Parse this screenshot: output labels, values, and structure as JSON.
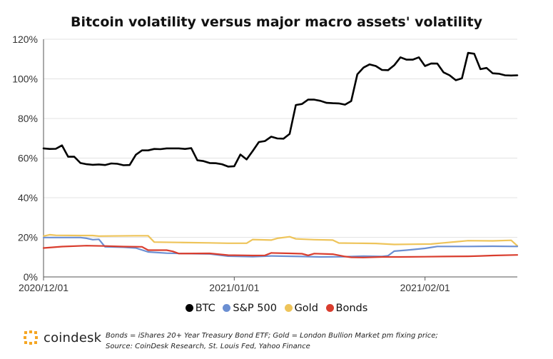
{
  "chart_data": {
    "type": "line",
    "title": "Bitcoin volatility versus major macro assets' volatility",
    "x_ticks": [
      "2020/12/01",
      "2021/01/01",
      "2021/02/01"
    ],
    "x_range": [
      "2020/12/01",
      "2021/02/15"
    ],
    "y_ticks": [
      "0%",
      "20%",
      "40%",
      "60%",
      "80%",
      "100%",
      "120%"
    ],
    "ylim": [
      0,
      120
    ],
    "grid": "horizontal",
    "legend_position": "bottom",
    "series": [
      {
        "name": "BTC",
        "color": "#000000",
        "points": [
          [
            "2020/12/01",
            64.9
          ],
          [
            "2020/12/02",
            64.6
          ],
          [
            "2020/12/03",
            64.7
          ],
          [
            "2020/12/04",
            66.4
          ],
          [
            "2020/12/05",
            60.7
          ],
          [
            "2020/12/06",
            60.7
          ],
          [
            "2020/12/07",
            57.5
          ],
          [
            "2020/12/08",
            56.9
          ],
          [
            "2020/12/09",
            56.6
          ],
          [
            "2020/12/10",
            56.8
          ],
          [
            "2020/12/11",
            56.5
          ],
          [
            "2020/12/12",
            57.3
          ],
          [
            "2020/12/13",
            57.1
          ],
          [
            "2020/12/14",
            56.4
          ],
          [
            "2020/12/15",
            56.5
          ],
          [
            "2020/12/16",
            61.7
          ],
          [
            "2020/12/17",
            63.9
          ],
          [
            "2020/12/18",
            63.9
          ],
          [
            "2020/12/19",
            64.6
          ],
          [
            "2020/12/20",
            64.5
          ],
          [
            "2020/12/21",
            64.9
          ],
          [
            "2020/12/22",
            64.9
          ],
          [
            "2020/12/23",
            64.9
          ],
          [
            "2020/12/24",
            64.6
          ],
          [
            "2020/12/25",
            65.0
          ],
          [
            "2020/12/26",
            58.9
          ],
          [
            "2020/12/27",
            58.5
          ],
          [
            "2020/12/28",
            57.5
          ],
          [
            "2020/12/29",
            57.4
          ],
          [
            "2020/12/30",
            56.9
          ],
          [
            "2020/12/31",
            55.7
          ],
          [
            "2021/01/01",
            55.9
          ],
          [
            "2021/01/02",
            61.8
          ],
          [
            "2021/01/03",
            59.3
          ],
          [
            "2021/01/04",
            63.6
          ],
          [
            "2021/01/05",
            68.1
          ],
          [
            "2021/01/06",
            68.6
          ],
          [
            "2021/01/07",
            70.8
          ],
          [
            "2021/01/08",
            69.9
          ],
          [
            "2021/01/09",
            69.8
          ],
          [
            "2021/01/10",
            72.2
          ],
          [
            "2021/01/11",
            86.8
          ],
          [
            "2021/01/12",
            87.3
          ],
          [
            "2021/01/13",
            89.5
          ],
          [
            "2021/01/14",
            89.5
          ],
          [
            "2021/01/15",
            88.9
          ],
          [
            "2021/01/16",
            87.9
          ],
          [
            "2021/01/17",
            87.7
          ],
          [
            "2021/01/18",
            87.6
          ],
          [
            "2021/01/19",
            87.0
          ],
          [
            "2021/01/20",
            88.8
          ],
          [
            "2021/01/21",
            102.3
          ],
          [
            "2021/01/22",
            105.7
          ],
          [
            "2021/01/23",
            107.3
          ],
          [
            "2021/01/24",
            106.5
          ],
          [
            "2021/01/25",
            104.5
          ],
          [
            "2021/01/26",
            104.4
          ],
          [
            "2021/01/27",
            106.9
          ],
          [
            "2021/01/28",
            110.9
          ],
          [
            "2021/01/29",
            109.7
          ],
          [
            "2021/01/30",
            109.7
          ],
          [
            "2021/01/31",
            110.9
          ],
          [
            "2021/02/01",
            106.5
          ],
          [
            "2021/02/02",
            107.8
          ],
          [
            "2021/02/03",
            107.7
          ],
          [
            "2021/02/04",
            103.3
          ],
          [
            "2021/02/05",
            101.8
          ],
          [
            "2021/02/06",
            99.3
          ],
          [
            "2021/02/07",
            100.3
          ],
          [
            "2021/02/08",
            113.1
          ],
          [
            "2021/02/09",
            112.7
          ],
          [
            "2021/02/10",
            104.9
          ],
          [
            "2021/02/11",
            105.5
          ],
          [
            "2021/02/12",
            102.8
          ],
          [
            "2021/02/13",
            102.6
          ],
          [
            "2021/02/14",
            101.8
          ],
          [
            "2021/02/15",
            101.7
          ],
          [
            "2021/02/16",
            101.8
          ]
        ]
      },
      {
        "name": "S&P 500",
        "color": "#6B8FD2",
        "points": [
          [
            "2020/12/01",
            19.9
          ],
          [
            "2020/12/07",
            19.9
          ],
          [
            "2020/12/08",
            19.5
          ],
          [
            "2020/12/09",
            18.8
          ],
          [
            "2020/12/10",
            19.0
          ],
          [
            "2020/12/11",
            15.2
          ],
          [
            "2020/12/14",
            15.0
          ],
          [
            "2020/12/16",
            14.6
          ],
          [
            "2020/12/18",
            12.6
          ],
          [
            "2020/12/21",
            12.0
          ],
          [
            "2020/12/24",
            11.8
          ],
          [
            "2020/12/28",
            11.6
          ],
          [
            "2020/12/31",
            10.5
          ],
          [
            "2021/01/04",
            10.2
          ],
          [
            "2021/01/07",
            10.6
          ],
          [
            "2021/01/12",
            10.3
          ],
          [
            "2021/01/15",
            10.1
          ],
          [
            "2021/01/19",
            10.2
          ],
          [
            "2021/01/22",
            10.5
          ],
          [
            "2021/01/25",
            10.3
          ],
          [
            "2021/01/26",
            10.7
          ],
          [
            "2021/01/27",
            13.0
          ],
          [
            "2021/01/29",
            13.5
          ],
          [
            "2021/02/01",
            14.4
          ],
          [
            "2021/02/03",
            15.4
          ],
          [
            "2021/02/08",
            15.4
          ],
          [
            "2021/02/12",
            15.5
          ],
          [
            "2021/02/16",
            15.4
          ]
        ]
      },
      {
        "name": "Gold",
        "color": "#EEC45A",
        "points": [
          [
            "2020/12/01",
            20.6
          ],
          [
            "2020/12/02",
            21.3
          ],
          [
            "2020/12/03",
            21.0
          ],
          [
            "2020/12/07",
            20.9
          ],
          [
            "2020/12/09",
            20.9
          ],
          [
            "2020/12/10",
            20.6
          ],
          [
            "2020/12/16",
            20.8
          ],
          [
            "2020/12/18",
            20.8
          ],
          [
            "2020/12/19",
            17.6
          ],
          [
            "2020/12/23",
            17.4
          ],
          [
            "2020/12/28",
            17.2
          ],
          [
            "2020/12/31",
            17.0
          ],
          [
            "2021/01/03",
            17.0
          ],
          [
            "2021/01/04",
            18.9
          ],
          [
            "2021/01/07",
            18.6
          ],
          [
            "2021/01/08",
            19.5
          ],
          [
            "2021/01/10",
            20.3
          ],
          [
            "2021/01/11",
            19.2
          ],
          [
            "2021/01/14",
            18.8
          ],
          [
            "2021/01/17",
            18.6
          ],
          [
            "2021/01/18",
            17.1
          ],
          [
            "2021/01/21",
            17.0
          ],
          [
            "2021/01/24",
            16.9
          ],
          [
            "2021/01/27",
            16.4
          ],
          [
            "2021/01/30",
            16.5
          ],
          [
            "2021/02/02",
            16.6
          ],
          [
            "2021/02/04",
            17.2
          ],
          [
            "2021/02/08",
            18.3
          ],
          [
            "2021/02/12",
            18.2
          ],
          [
            "2021/02/15",
            18.5
          ],
          [
            "2021/02/16",
            15.7
          ]
        ]
      },
      {
        "name": "Bonds",
        "color": "#D93D2E",
        "points": [
          [
            "2020/12/01",
            14.6
          ],
          [
            "2020/12/04",
            15.3
          ],
          [
            "2020/12/08",
            15.8
          ],
          [
            "2020/12/11",
            15.6
          ],
          [
            "2020/12/14",
            15.3
          ],
          [
            "2020/12/17",
            15.2
          ],
          [
            "2020/12/18",
            13.5
          ],
          [
            "2020/12/21",
            13.5
          ],
          [
            "2020/12/22",
            12.9
          ],
          [
            "2020/12/23",
            11.8
          ],
          [
            "2020/12/28",
            11.9
          ],
          [
            "2020/12/31",
            11.0
          ],
          [
            "2021/01/03",
            10.9
          ],
          [
            "2021/01/04",
            10.8
          ],
          [
            "2021/01/06",
            10.9
          ],
          [
            "2021/01/07",
            12.1
          ],
          [
            "2021/01/10",
            11.9
          ],
          [
            "2021/01/12",
            11.7
          ],
          [
            "2021/01/13",
            10.9
          ],
          [
            "2021/01/14",
            11.8
          ],
          [
            "2021/01/17",
            11.5
          ],
          [
            "2021/01/19",
            10.3
          ],
          [
            "2021/01/20",
            9.9
          ],
          [
            "2021/01/22",
            9.8
          ],
          [
            "2021/01/25",
            10.1
          ],
          [
            "2021/01/28",
            10.1
          ],
          [
            "2021/02/01",
            10.2
          ],
          [
            "2021/02/04",
            10.3
          ],
          [
            "2021/02/08",
            10.4
          ],
          [
            "2021/02/10",
            10.6
          ],
          [
            "2021/02/12",
            10.8
          ],
          [
            "2021/02/16",
            11.1
          ]
        ]
      }
    ]
  },
  "legend": [
    {
      "label": "BTC",
      "color": "#000000"
    },
    {
      "label": "S&P 500",
      "color": "#6B8FD2"
    },
    {
      "label": "Gold",
      "color": "#EEC45A"
    },
    {
      "label": "Bonds",
      "color": "#D93D2E"
    }
  ],
  "footer": {
    "brand": "coindesk",
    "brand_color": "#F5A623",
    "note_line1": "Bonds = iShares 20+ Year Treasury Bond ETF;   Gold = London Bullion Market pm fixing price;",
    "note_line2": "Source: CoinDesk Research, St. Louis Fed, Yahoo Finance"
  }
}
